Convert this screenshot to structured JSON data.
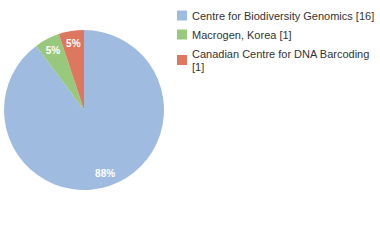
{
  "chart_data": {
    "type": "pie",
    "categories": [
      "Centre for Biodiversity Genomics [16]",
      "Macrogen, Korea [1]",
      "Canadian Centre for DNA Barcoding [1]"
    ],
    "values": [
      88,
      5,
      5
    ],
    "value_labels": [
      "88%",
      "5%",
      "5%"
    ],
    "colors": [
      "#a0bbe0",
      "#98c87c",
      "#de7760"
    ],
    "data_labels": true,
    "legend": "top-right"
  }
}
